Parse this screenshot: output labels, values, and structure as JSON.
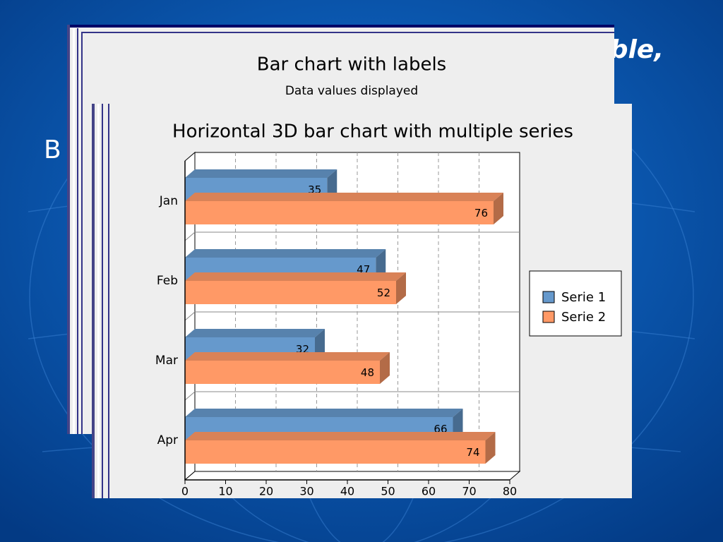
{
  "slide": {
    "title_fragment": "ble,",
    "bullet_fragment": "B"
  },
  "back_chart": {
    "title": "Bar chart with labels",
    "subtitle": "Data values displayed"
  },
  "chart_data": {
    "type": "bar3d_horizontal",
    "title": "Horizontal 3D bar chart with multiple series",
    "categories": [
      "Jan",
      "Feb",
      "Mar",
      "Apr"
    ],
    "series": [
      {
        "name": "Serie 1",
        "color": "#6699cc",
        "values": [
          35,
          47,
          32,
          66
        ]
      },
      {
        "name": "Serie 2",
        "color": "#ff9966",
        "values": [
          76,
          52,
          48,
          74
        ]
      }
    ],
    "xlim": [
      0,
      80
    ],
    "xticks": [
      0,
      10,
      20,
      30,
      40,
      50,
      60,
      70,
      80
    ],
    "grid": true,
    "legend": "right"
  }
}
